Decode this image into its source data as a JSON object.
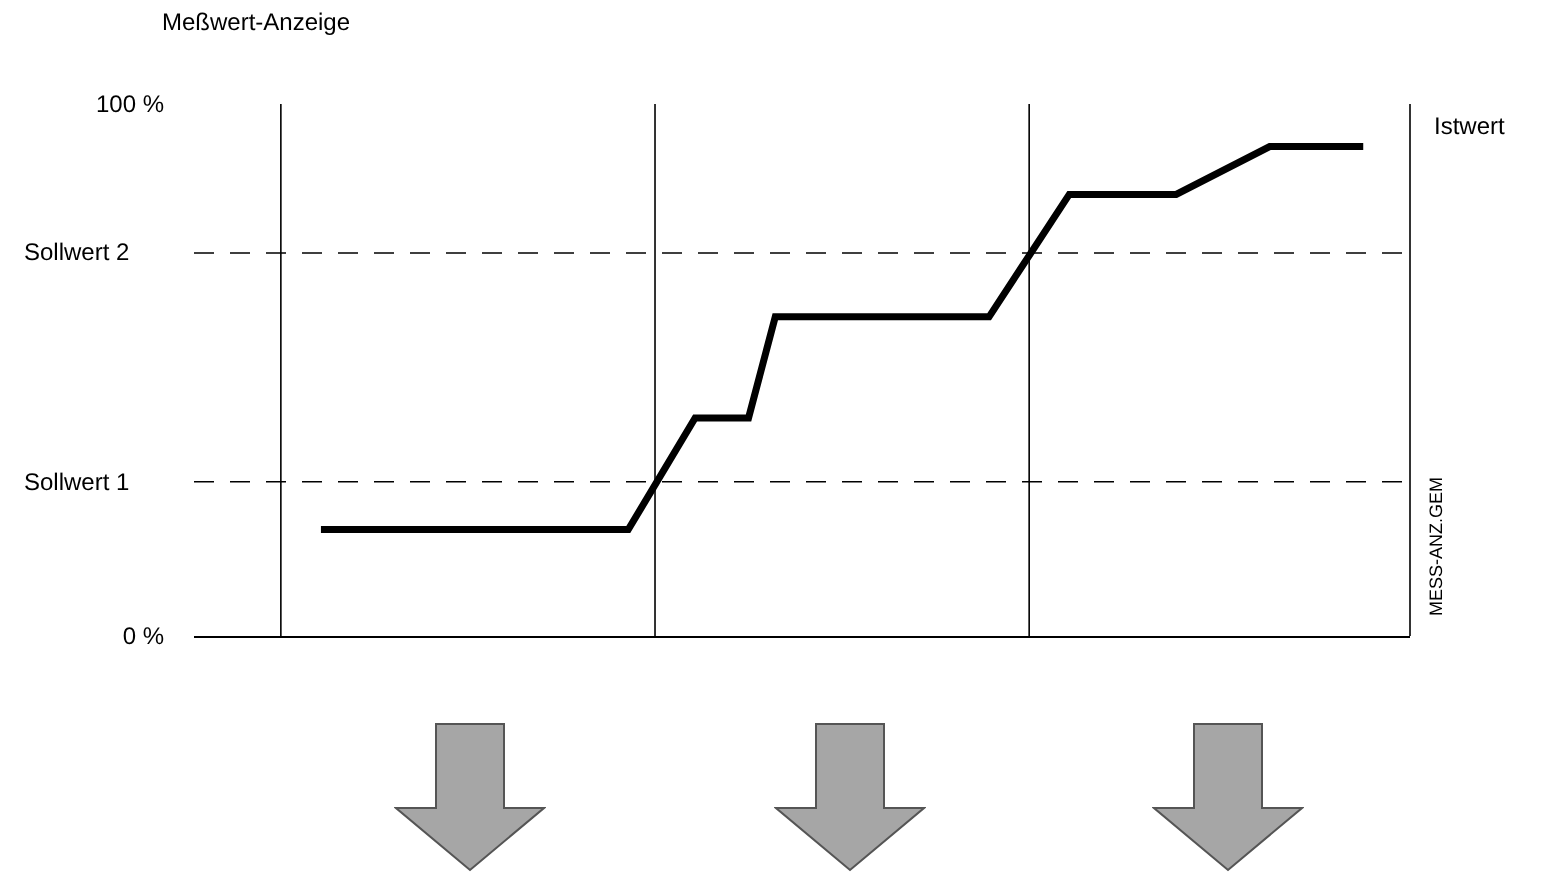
{
  "chart_data": {
    "type": "line",
    "ylabel": "Meßwert-Anzeige",
    "categories": [
      null,
      null,
      null,
      null,
      null,
      null,
      null,
      null,
      null,
      null,
      null,
      null,
      null,
      null,
      null,
      null,
      null,
      null,
      null,
      null,
      null,
      null,
      null,
      null,
      null,
      null,
      null,
      null,
      null,
      null,
      null,
      null,
      null,
      null,
      null,
      null,
      null,
      null,
      null,
      null,
      null,
      null,
      null,
      null,
      null,
      null,
      null,
      null,
      null,
      null,
      null,
      null,
      null,
      null,
      null,
      null,
      null,
      null,
      null,
      null,
      null,
      null,
      null,
      null,
      null,
      null,
      null,
      null,
      null,
      null,
      null,
      null,
      null,
      null,
      null,
      null,
      null,
      null,
      null,
      null,
      null,
      null,
      null,
      null,
      null,
      null,
      null,
      null,
      null,
      null,
      null
    ],
    "series": [
      {
        "name": "Istwert",
        "color": "#000000",
        "values": [
          null,
          null,
          null,
          null,
          null,
          null,
          null,
          null,
          null,
          20,
          null,
          null,
          null,
          null,
          null,
          null,
          null,
          null,
          null,
          null,
          null,
          null,
          null,
          null,
          null,
          null,
          null,
          null,
          null,
          null,
          null,
          null,
          20,
          null,
          null,
          null,
          null,
          41,
          null,
          null,
          null,
          41,
          null,
          60,
          null,
          null,
          null,
          null,
          null,
          null,
          null,
          null,
          null,
          null,
          null,
          null,
          null,
          null,
          null,
          60,
          null,
          null,
          null,
          null,
          null,
          83,
          null,
          null,
          null,
          null,
          null,
          null,
          null,
          83,
          null,
          null,
          null,
          null,
          null,
          null,
          92,
          null,
          null,
          null,
          null,
          null,
          null,
          92,
          null,
          null,
          null
        ]
      }
    ],
    "ylim": [
      0,
      100
    ],
    "yticks": [
      {
        "value": 0,
        "label": "0 %"
      },
      {
        "value": 100,
        "label": "100 %"
      }
    ],
    "ref_lines": [
      {
        "axis": "y",
        "value": 29,
        "label": "Sollwert 1",
        "color": "#000000",
        "line_style": "dashed"
      },
      {
        "axis": "y",
        "value": 72,
        "label": "Sollwert 2",
        "color": "#000000",
        "line_style": "dashed"
      }
    ],
    "annotations": [
      "MESS-ANZ.GEM"
    ],
    "grid": "x",
    "legend": false,
    "tick_labels": "y",
    "marker": "none",
    "line_style": "solid"
  }
}
